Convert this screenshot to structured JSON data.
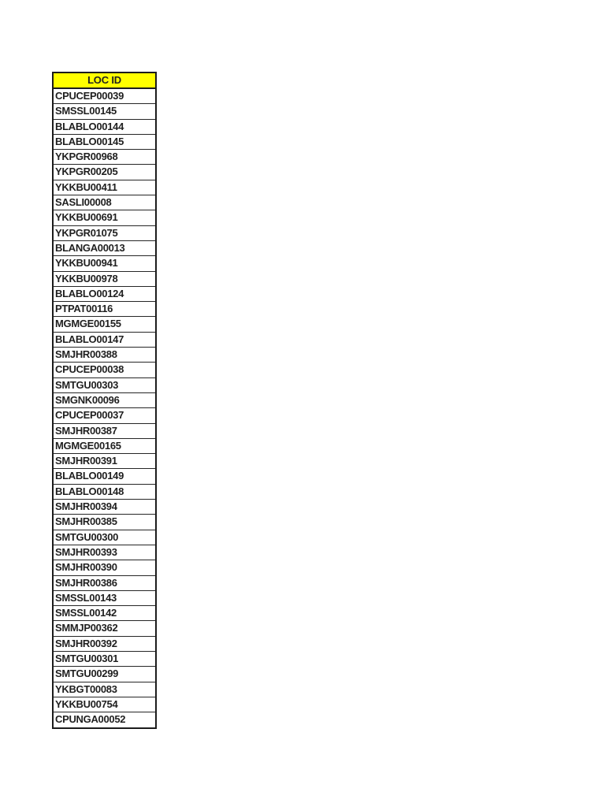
{
  "page": {
    "background_color": "#ffffff"
  },
  "table": {
    "header": {
      "label": "LOC ID",
      "background_color": "#FFFF00",
      "text_color": "#1f1f1f"
    },
    "border_color": "#1c1c1c",
    "rows": [
      "CPUCEP00039",
      "SMSSL00145",
      "BLABLO00144",
      "BLABLO00145",
      "YKPGR00968",
      "YKPGR00205",
      "YKKBU00411",
      "SASLI00008",
      "YKKBU00691",
      "YKPGR01075",
      "BLANGA00013",
      "YKKBU00941",
      "YKKBU00978",
      "BLABLO00124",
      "PTPAT00116",
      "MGMGE00155",
      "BLABLO00147",
      "SMJHR00388",
      "CPUCEP00038",
      "SMTGU00303",
      "SMGNK00096",
      "CPUCEP00037",
      "SMJHR00387",
      "MGMGE00165",
      "SMJHR00391",
      "BLABLO00149",
      "BLABLO00148",
      "SMJHR00394",
      "SMJHR00385",
      "SMTGU00300",
      "SMJHR00393",
      "SMJHR00390",
      "SMJHR00386",
      "SMSSL00143",
      "SMSSL00142",
      "SMMJP00362",
      "SMJHR00392",
      "SMTGU00301",
      "SMTGU00299",
      "YKBGT00083",
      "YKKBU00754",
      "CPUNGA00052"
    ]
  }
}
